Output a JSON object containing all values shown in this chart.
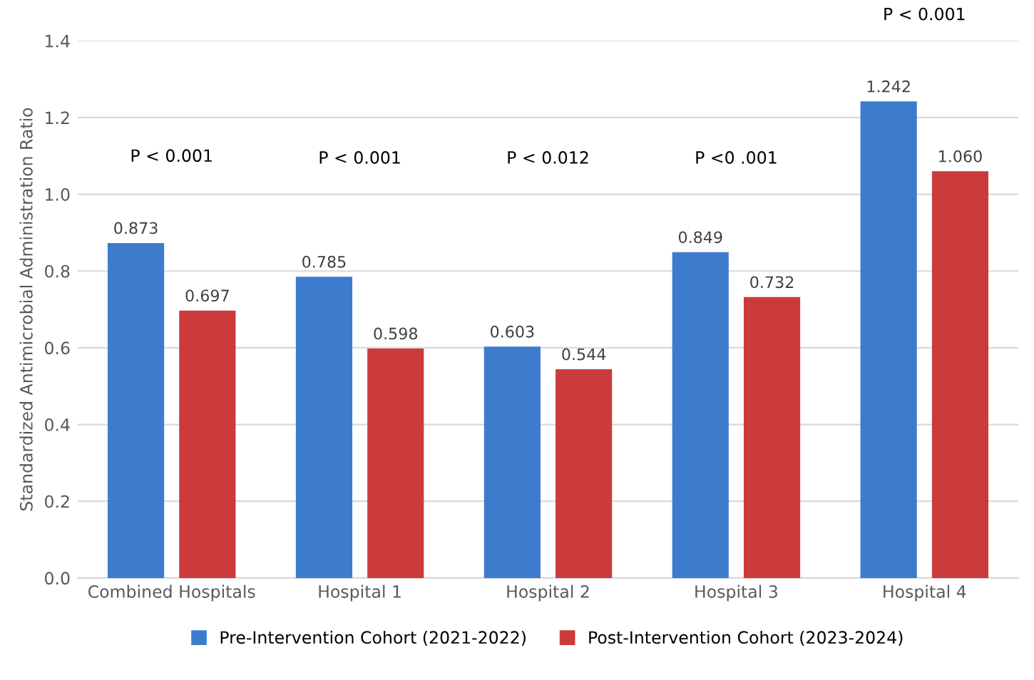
{
  "chart_data": {
    "type": "bar",
    "ylabel": "Standardized Antimicrobial Administration Ratio",
    "categories": [
      "Combined Hospitals",
      "Hospital 1",
      "Hospital 2",
      "Hospital 3",
      "Hospital 4"
    ],
    "series": [
      {
        "name": "Pre-Intervention Cohort (2021-2022)",
        "color": "#3d7ccc",
        "values": [
          0.873,
          0.785,
          0.603,
          0.849,
          1.242
        ],
        "value_labels": [
          "0.873",
          "0.785",
          "0.603",
          "0.849",
          "1.242"
        ]
      },
      {
        "name": "Post-Intervention Cohort (2023-2024)",
        "color": "#cc3b3b",
        "values": [
          0.697,
          0.598,
          0.544,
          0.732,
          1.06
        ],
        "value_labels": [
          "0.697",
          "0.598",
          "0.544",
          "0.732",
          "1.060"
        ]
      }
    ],
    "ylim": [
      0.0,
      1.4
    ],
    "yticks": [
      {
        "value": 0,
        "label": "0.0"
      },
      0.2,
      0.4,
      0.6,
      0.8,
      {
        "value": 1,
        "label": "1.0"
      },
      1.2,
      1.4
    ],
    "grid": "y",
    "legend": "bottom",
    "annotations": [
      "P < 0.001",
      "P < 0.001",
      "P < 0.012",
      "P <0 .001",
      "P < 0.001"
    ]
  }
}
